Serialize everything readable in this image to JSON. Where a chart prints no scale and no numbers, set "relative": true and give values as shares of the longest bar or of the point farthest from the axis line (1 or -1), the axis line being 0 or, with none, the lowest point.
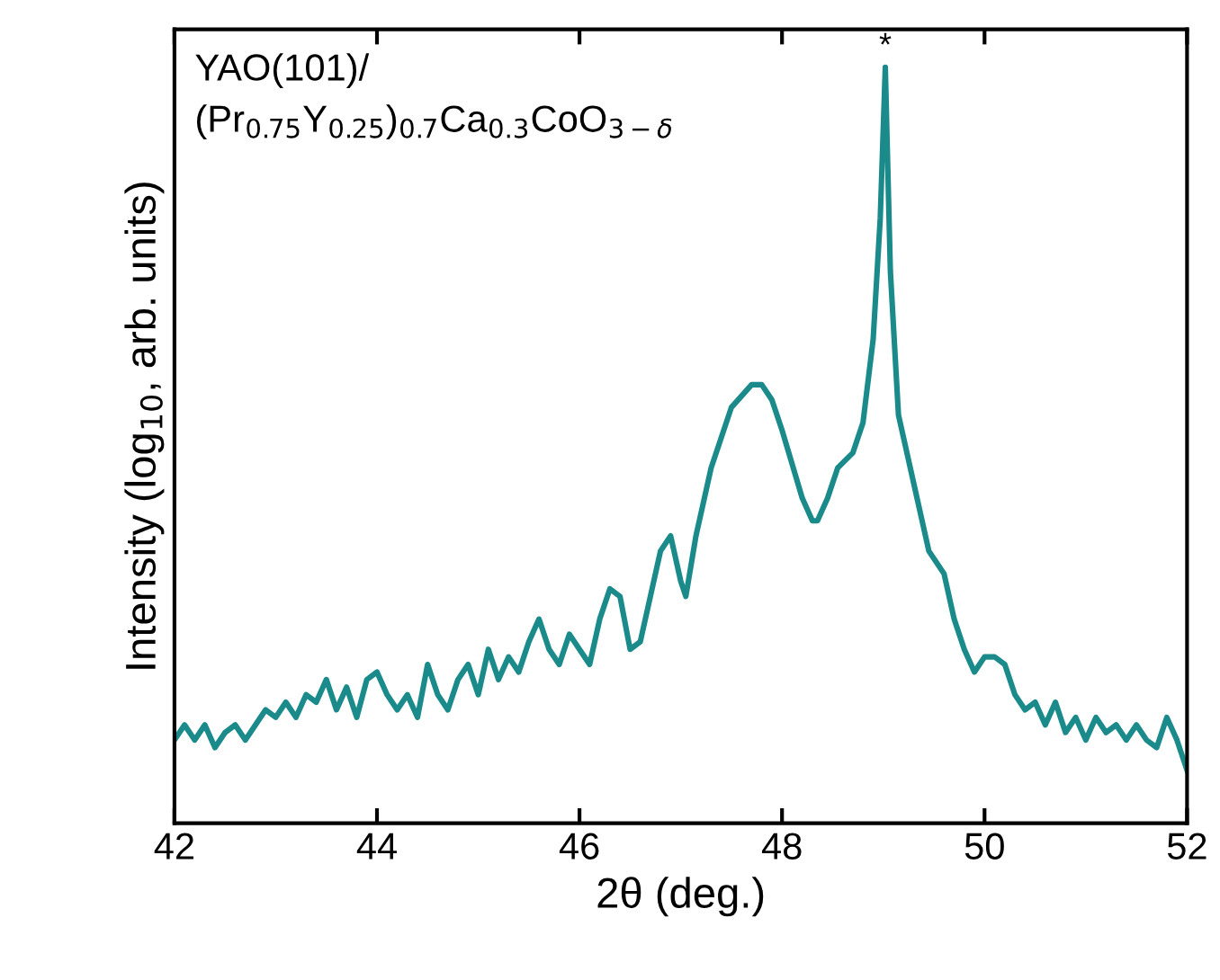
{
  "chart_data": {
    "type": "line",
    "relative": true,
    "xlabel": "2θ (deg.)",
    "ylabel": "Intensity (log$_{10}$, arb. units)",
    "xlim": [
      42,
      52
    ],
    "xticks": [
      42,
      44,
      46,
      48,
      50,
      52
    ],
    "marker": "none",
    "line_style": "solid",
    "annotations": [
      "YAO(101)/\n(Pr$_{0.75}$Y$_{0.25}$)$_{0.7}$Ca$_{0.3}$CoO$_{3−δ}$",
      {
        "text": "*",
        "x": 49.02,
        "y": 1.0
      }
    ],
    "series": [
      {
        "color": "#1a8a8a",
        "x": [
          42.0,
          42.1,
          42.2,
          42.3,
          42.4,
          42.5,
          42.6,
          42.7,
          42.8,
          42.9,
          43.0,
          43.1,
          43.2,
          43.3,
          43.4,
          43.5,
          43.6,
          43.7,
          43.8,
          43.9,
          44.0,
          44.1,
          44.2,
          44.3,
          44.4,
          44.5,
          44.6,
          44.7,
          44.8,
          44.9,
          45.0,
          45.1,
          45.2,
          45.3,
          45.4,
          45.5,
          45.6,
          45.7,
          45.8,
          45.9,
          46.0,
          46.1,
          46.2,
          46.3,
          46.4,
          46.5,
          46.6,
          46.7,
          46.8,
          46.9,
          47.0,
          47.05,
          47.15,
          47.3,
          47.5,
          47.7,
          47.8,
          47.9,
          48.0,
          48.2,
          48.3,
          48.35,
          48.45,
          48.55,
          48.7,
          48.8,
          48.9,
          48.97,
          49.02,
          49.07,
          49.15,
          49.3,
          49.45,
          49.6,
          49.7,
          49.8,
          49.9,
          50.0,
          50.1,
          50.2,
          50.3,
          50.4,
          50.5,
          50.6,
          50.7,
          50.8,
          50.9,
          51.0,
          51.1,
          51.2,
          51.3,
          51.4,
          51.5,
          51.6,
          51.7,
          51.8,
          51.9,
          52.0
        ],
        "values": [
          0.11,
          0.13,
          0.11,
          0.13,
          0.1,
          0.12,
          0.13,
          0.11,
          0.13,
          0.15,
          0.14,
          0.16,
          0.14,
          0.17,
          0.16,
          0.19,
          0.15,
          0.18,
          0.14,
          0.19,
          0.2,
          0.17,
          0.15,
          0.17,
          0.14,
          0.21,
          0.17,
          0.15,
          0.19,
          0.21,
          0.17,
          0.23,
          0.19,
          0.22,
          0.2,
          0.24,
          0.27,
          0.23,
          0.21,
          0.25,
          0.23,
          0.21,
          0.27,
          0.31,
          0.3,
          0.23,
          0.24,
          0.3,
          0.36,
          0.38,
          0.32,
          0.3,
          0.38,
          0.47,
          0.55,
          0.58,
          0.58,
          0.56,
          0.52,
          0.43,
          0.4,
          0.4,
          0.43,
          0.47,
          0.49,
          0.53,
          0.64,
          0.8,
          1,
          0.73,
          0.54,
          0.45,
          0.36,
          0.33,
          0.27,
          0.23,
          0.2,
          0.22,
          0.22,
          0.21,
          0.17,
          0.15,
          0.16,
          0.13,
          0.16,
          0.12,
          0.14,
          0.11,
          0.14,
          0.12,
          0.13,
          0.11,
          0.13,
          0.11,
          0.1,
          0.14,
          0.11,
          0.07
        ]
      }
    ]
  }
}
